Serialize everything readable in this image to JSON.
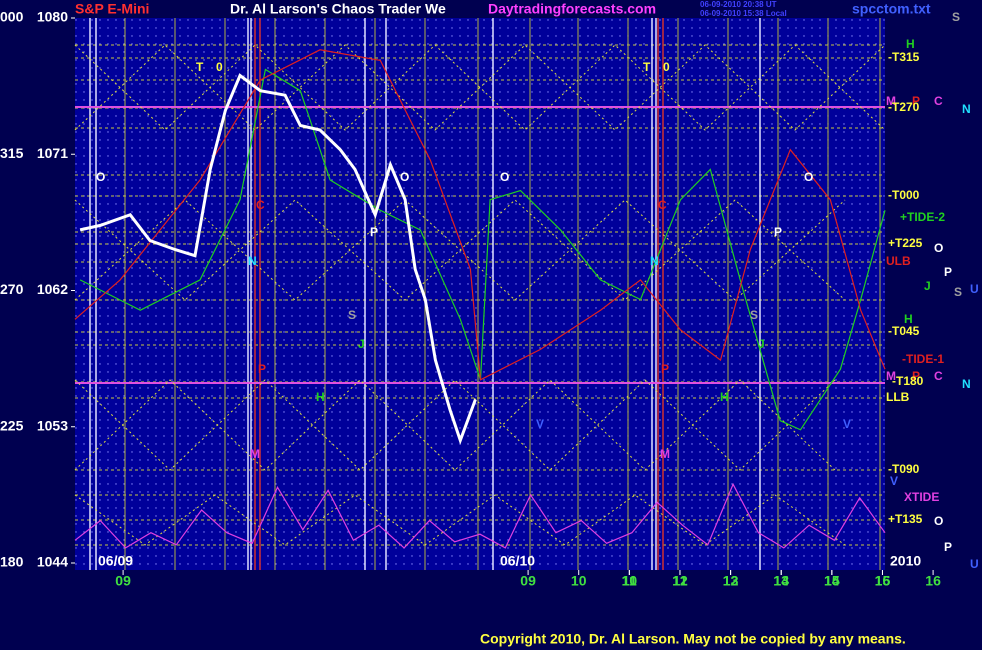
{
  "chart_data": {
    "type": "line",
    "title": "Dr. Al Larson's Chaos Trader We",
    "symbol": "S&P E-Mini",
    "site": "Daytradingforecasts.com",
    "stamp": [
      "06-09-2010 20:38 UT",
      "06-09-2010 15:38 Local"
    ],
    "file": "spcctom.txt",
    "copyright": "Copyright 2010, Dr. Al Larson. May not be copied by any means.",
    "dates": [
      "06/09",
      "06/10"
    ],
    "year": "2010",
    "xlim": [
      -0.95,
      15.05
    ],
    "xticks": [
      {
        "value": 0,
        "label": "09"
      },
      10,
      11,
      12,
      13,
      14,
      15,
      16,
      {
        "value": 8,
        "label": "09"
      },
      {
        "value": 9,
        "label": "10"
      },
      {
        "value": 10,
        "label": "11"
      },
      {
        "value": 11,
        "label": "12"
      },
      {
        "value": 12,
        "label": "13"
      },
      {
        "value": 13,
        "label": "14"
      },
      {
        "value": 14,
        "label": "15"
      },
      {
        "value": 15,
        "label": "16"
      }
    ],
    "ylim": [
      1044,
      1080
    ],
    "yticks": [
      1044,
      1053,
      1062,
      1071,
      1080
    ],
    "angle_labels": [
      "180",
      "225",
      "270",
      "315",
      "000"
    ],
    "price": {
      "color": "#ffffff",
      "x": [
        -0.85,
        -0.45,
        0.14,
        0.53,
        1.03,
        1.42,
        1.72,
        2.02,
        2.31,
        2.71,
        3.2,
        3.5,
        3.89,
        4.29,
        4.58,
        4.98,
        5.28,
        5.57,
        5.77,
        5.97,
        6.17,
        6.46,
        6.66,
        6.96
      ],
      "values": [
        1066.0,
        1066.3,
        1067.0,
        1065.3,
        1064.7,
        1064.3,
        1070.0,
        1073.9,
        1076.2,
        1075.2,
        1074.9,
        1072.9,
        1072.6,
        1071.3,
        1070.0,
        1067.0,
        1070.3,
        1068.0,
        1063.4,
        1061.4,
        1057.4,
        1054.1,
        1052.1,
        1054.8
      ]
    },
    "series": [
      {
        "name": "+TIDE-2",
        "color": "#20d020",
        "x": [
          -0.85,
          0.34,
          1.52,
          2.31,
          2.81,
          3.5,
          4.09,
          5.08,
          5.87,
          6.66,
          7.06,
          7.25,
          7.85,
          8.64,
          9.43,
          10.22,
          11.01,
          11.6,
          12.19,
          12.98,
          13.38,
          14.17,
          14.57,
          15.05
        ],
        "values": [
          1062.7,
          1060.7,
          1062.7,
          1068.0,
          1076.6,
          1075.2,
          1069.3,
          1067.3,
          1066.0,
          1060.1,
          1056.1,
          1068.0,
          1068.6,
          1066.0,
          1062.7,
          1061.4,
          1068.0,
          1070.0,
          1062.7,
          1053.4,
          1052.8,
          1056.8,
          1061.4,
          1067.3
        ]
      },
      {
        "name": "-TIDE-1",
        "color": "#e02020",
        "x": [
          -0.95,
          -0.06,
          1.52,
          2.71,
          3.89,
          5.08,
          6.07,
          6.86,
          7.06,
          8.24,
          9.43,
          10.22,
          11.01,
          11.8,
          12.39,
          13.18,
          13.97,
          14.57,
          15.05
        ],
        "values": [
          1060.1,
          1062.7,
          1069.3,
          1075.9,
          1077.9,
          1077.2,
          1070.6,
          1063.4,
          1056.1,
          1058.1,
          1060.7,
          1062.7,
          1059.4,
          1057.4,
          1064.7,
          1071.3,
          1068.0,
          1060.7,
          1056.8
        ]
      },
      {
        "name": "XTIDE",
        "color": "#e040e0",
        "x": [
          -0.95,
          -0.45,
          0.05,
          0.55,
          1.05,
          1.55,
          2.05,
          2.55,
          3.05,
          3.55,
          4.05,
          4.55,
          5.05,
          5.55,
          6.05,
          6.55,
          7.05,
          7.55,
          8.05,
          8.55,
          9.05,
          9.55,
          10.05,
          10.55,
          11.05,
          11.55,
          12.05,
          12.55,
          13.05,
          13.55,
          14.05,
          14.55,
          15.05
        ],
        "values": [
          1045.5,
          1046.8,
          1045.0,
          1046.0,
          1045.2,
          1047.5,
          1046.0,
          1045.3,
          1049.0,
          1046.2,
          1048.8,
          1045.5,
          1046.5,
          1045.0,
          1046.8,
          1045.4,
          1045.9,
          1045.0,
          1048.5,
          1046.0,
          1046.8,
          1045.3,
          1046.0,
          1048.0,
          1046.5,
          1045.2,
          1049.2,
          1046.0,
          1045.0,
          1046.5,
          1045.5,
          1048.3,
          1046.0
        ]
      }
    ],
    "annotations": [
      "H",
      "-T315",
      "M",
      "P",
      "C",
      "N",
      "-T270",
      "-T000",
      "+T225",
      "O",
      "ULB",
      "P",
      "J",
      "S",
      "U",
      "H",
      "-T045",
      "M",
      "P",
      "C",
      "-T180",
      "N",
      "LLB",
      "-T090",
      "V",
      "+T135",
      "O",
      "P",
      "U",
      "S",
      "T",
      "0",
      "T",
      "0",
      "O",
      "O",
      "O",
      "O",
      "C",
      "C",
      "P",
      "P",
      "N",
      "N",
      "S",
      "S",
      "J",
      "J",
      "P",
      "P",
      "H",
      "H",
      "M",
      "M",
      "V",
      "V"
    ]
  }
}
